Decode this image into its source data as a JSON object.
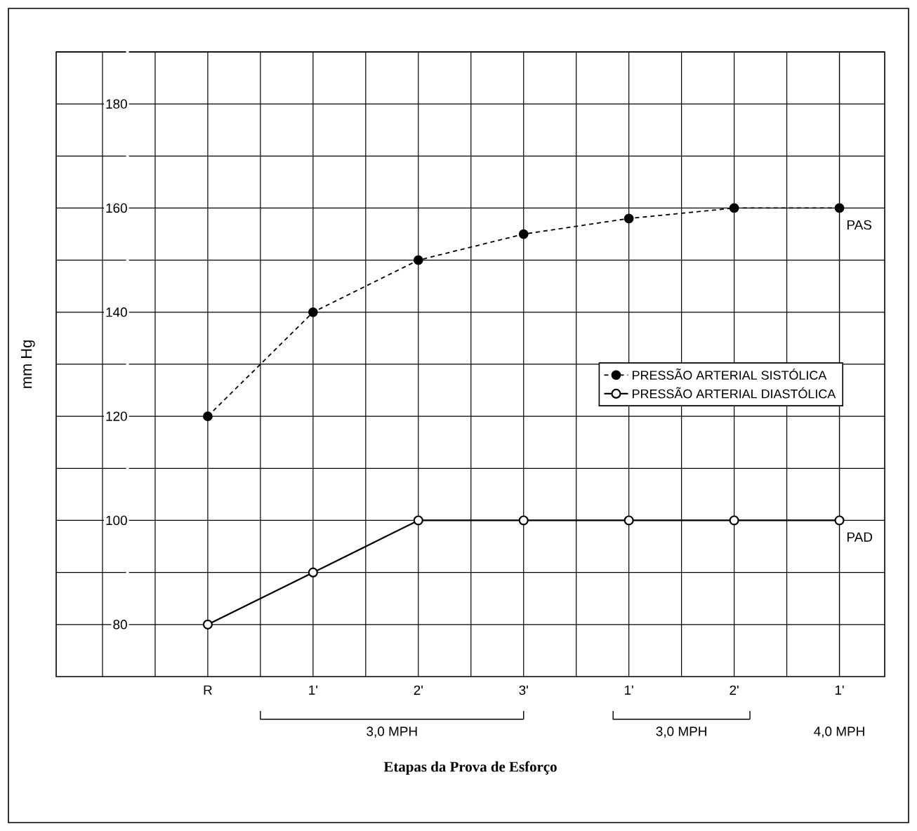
{
  "chart_data": {
    "type": "line",
    "xlabel": "Etapas da Prova de Esforço",
    "ylabel": "mm Hg",
    "categories": [
      "R",
      "1'",
      "2'",
      "3'",
      "1'",
      "2'",
      "1'"
    ],
    "series": [
      {
        "name": "PRESSÃO ARTERIAL SISTÓLICA",
        "color": "#000000",
        "line_style": "dashed",
        "values": [
          120,
          140,
          150,
          155,
          158,
          160,
          160
        ]
      },
      {
        "name": "PRESSÃO ARTERIAL DIASTÓLICA",
        "color": "#000000",
        "line_style": "solid",
        "values": [
          80,
          90,
          100,
          100,
          100,
          100,
          100
        ]
      }
    ],
    "ylim": [
      70,
      190
    ],
    "yticks": [
      80,
      {
        "value": 90,
        "label": null
      },
      100,
      {
        "value": 110,
        "label": null
      },
      120,
      {
        "value": 130,
        "label": null
      },
      140,
      {
        "value": 150,
        "label": null
      },
      160,
      {
        "value": 170,
        "label": null
      },
      180,
      {
        "value": 190,
        "label": null
      }
    ],
    "grid": true,
    "legend": "right",
    "marker": "circle",
    "annotations": [
      "3,0 MPH",
      "3,0 MPH",
      "4,0 MPH",
      "PAS",
      "PAD"
    ]
  }
}
